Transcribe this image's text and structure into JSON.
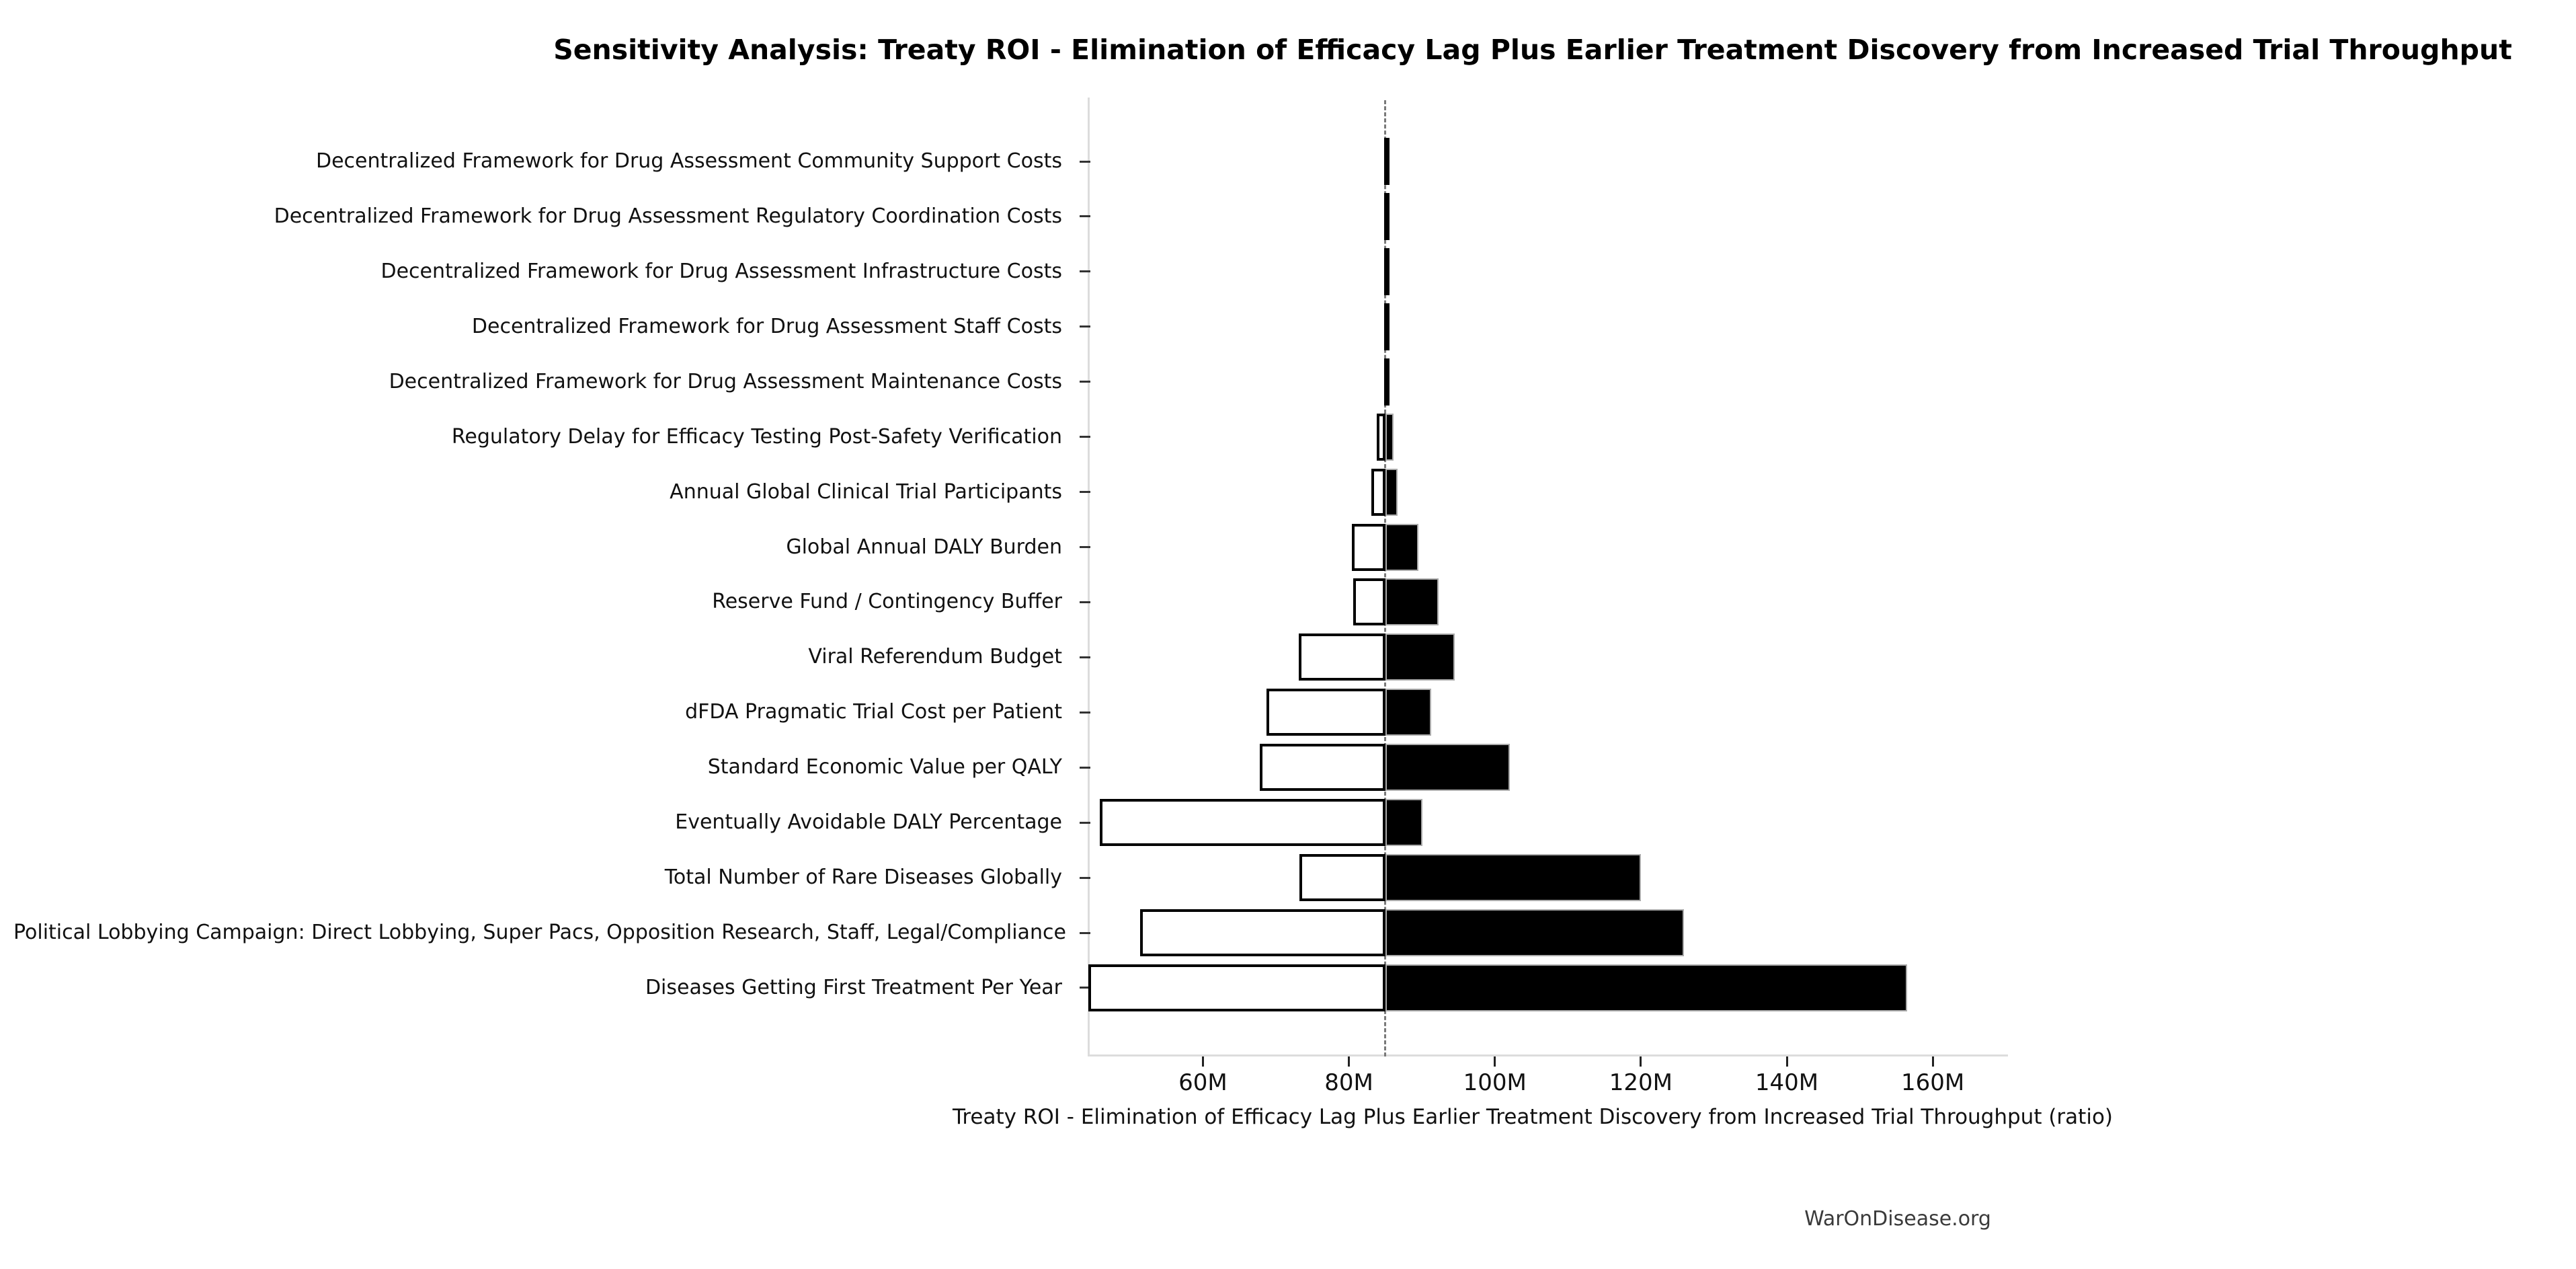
{
  "title": "Sensitivity Analysis: Treaty ROI - Elimination of Efficacy Lag Plus Earlier Treatment Discovery from Increased Trial Throughput",
  "footer": {
    "text": "WarOnDisease.org"
  },
  "chart_data": {
    "type": "bar",
    "variant": "tornado",
    "orientation": "horizontal",
    "title": "Sensitivity Analysis: Treaty ROI - Elimination of Efficacy Lag Plus Earlier Treatment Discovery from Increased Trial Throughput",
    "xlabel": "Treaty ROI - Elimination of Efficacy Lag Plus Earlier Treatment Discovery from Increased Trial Throughput (ratio)",
    "unit": "M",
    "grid": false,
    "legend": null,
    "base_value_millions": 85.0,
    "xlim_millions": [
      44.4,
      170.3
    ],
    "x_tick_values_millions": [
      60,
      80,
      100,
      120,
      140,
      160
    ],
    "x_tick_labels": [
      "60M",
      "80M",
      "100M",
      "120M",
      "140M",
      "160M"
    ],
    "bar_colors": {
      "low_side_fill": "#ffffff",
      "low_side_edge": "#000000",
      "high_side_fill": "#000000",
      "high_side_edge": "#ababab",
      "base_line": "#7a7a7a"
    },
    "bars": [
      {
        "label": "Decentralized Framework for Drug Assessment Community Support Costs",
        "low_millions": 84.8,
        "high_millions": 85.3
      },
      {
        "label": "Decentralized Framework for Drug Assessment Regulatory Coordination Costs",
        "low_millions": 84.8,
        "high_millions": 85.3
      },
      {
        "label": "Decentralized Framework for Drug Assessment Infrastructure Costs",
        "low_millions": 84.8,
        "high_millions": 85.3
      },
      {
        "label": "Decentralized Framework for Drug Assessment Staff Costs",
        "low_millions": 84.8,
        "high_millions": 85.3
      },
      {
        "label": "Decentralized Framework for Drug Assessment Maintenance Costs",
        "low_millions": 84.8,
        "high_millions": 85.2
      },
      {
        "label": "Regulatory Delay for Efficacy Testing Post-Safety Verification",
        "low_millions": 83.8,
        "high_millions": 86.1
      },
      {
        "label": "Annual Global Clinical Trial Participants",
        "low_millions": 83.1,
        "high_millions": 86.7
      },
      {
        "label": "Global Annual DALY Burden",
        "low_millions": 80.4,
        "high_millions": 89.5
      },
      {
        "label": "Reserve Fund / Contingency Buffer",
        "low_millions": 80.6,
        "high_millions": 92.3
      },
      {
        "label": "Viral Referendum Budget",
        "low_millions": 73.1,
        "high_millions": 94.5
      },
      {
        "label": "dFDA Pragmatic Trial Cost per Patient",
        "low_millions": 68.7,
        "high_millions": 91.3
      },
      {
        "label": "Standard Economic Value per QALY",
        "low_millions": 67.8,
        "high_millions": 102.1
      },
      {
        "label": "Eventually Avoidable DALY Percentage",
        "low_millions": 45.9,
        "high_millions": 90.1
      },
      {
        "label": "Total Number of Rare Diseases Globally",
        "low_millions": 73.2,
        "high_millions": 120.0
      },
      {
        "label": "Political Lobbying Campaign: Direct Lobbying, Super Pacs, Opposition Research, Staff, Legal/Compliance",
        "low_millions": 51.4,
        "high_millions": 125.9
      },
      {
        "label": "Diseases Getting First Treatment Per Year",
        "low_millions": 44.3,
        "high_millions": 156.5
      }
    ]
  }
}
